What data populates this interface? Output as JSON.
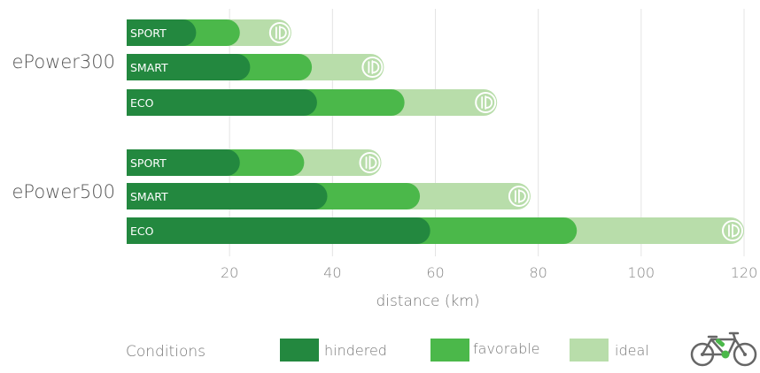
{
  "chart_data": {
    "type": "bar",
    "orientation": "horizontal",
    "stacked": true,
    "xlabel": "distance (km)",
    "xlim": [
      0,
      120
    ],
    "xticks": [
      20,
      40,
      60,
      80,
      100,
      120
    ],
    "grid": true,
    "groups": [
      {
        "name": "ePower300",
        "bars": [
          {
            "mode": "SPORT",
            "hindered": 13.5,
            "favorable": 22,
            "ideal": 32
          },
          {
            "mode": "SMART",
            "hindered": 24,
            "favorable": 36,
            "ideal": 50
          },
          {
            "mode": "ECO",
            "hindered": 37,
            "favorable": 54,
            "ideal": 72
          }
        ]
      },
      {
        "name": "ePower500",
        "bars": [
          {
            "mode": "SPORT",
            "hindered": 22,
            "favorable": 34.5,
            "ideal": 49.5
          },
          {
            "mode": "SMART",
            "hindered": 39,
            "favorable": 57,
            "ideal": 78.5
          },
          {
            "mode": "ECO",
            "hindered": 59,
            "favorable": 87.5,
            "ideal": 120
          }
        ]
      }
    ],
    "legend": {
      "position": "bottom",
      "title": "Conditions",
      "items": [
        {
          "key": "hindered",
          "label": "hindered",
          "color": "#23883f"
        },
        {
          "key": "favorable",
          "label": "favorable",
          "color": "#4bb84a"
        },
        {
          "key": "ideal",
          "label": "ideal",
          "color": "#b8ddaa"
        }
      ]
    }
  },
  "icons": {
    "legend_graphic": "bicycle-icon",
    "bar_end_marker": "power-badge-icon"
  }
}
